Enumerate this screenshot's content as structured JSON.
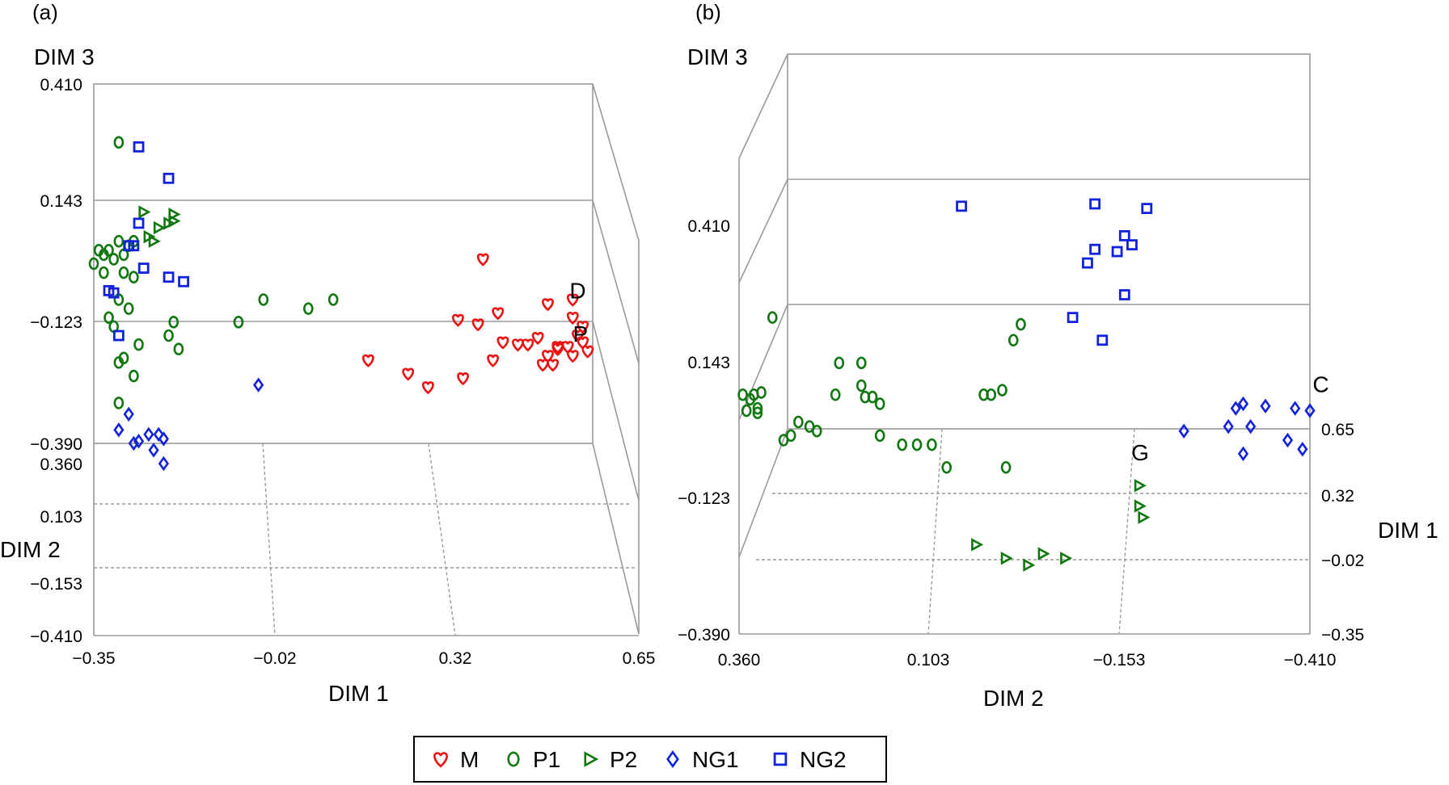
{
  "chart_data": [
    {
      "panel": "(a)",
      "type": "scatter",
      "xlabel": "DIM 1",
      "ylabel": "DIM 3",
      "zlabel": "DIM 2",
      "x_ticks": [
        "−0.35",
        "−0.02",
        "0.32",
        "0.65"
      ],
      "y_ticks": [
        "0.410",
        "0.143",
        "−0.123",
        "−0.390"
      ],
      "z_ticks": [
        "0.360",
        "0.103",
        "−0.153",
        "−0.410"
      ],
      "xlim": [
        -0.35,
        0.65
      ],
      "annotations": [
        {
          "text": "D",
          "x": 0.61,
          "y": -0.06
        },
        {
          "text": "P",
          "x": 0.62,
          "y": -0.135
        }
      ],
      "series": [
        {
          "name": "M",
          "points": [
            [
              0.43,
              0.02
            ],
            [
              0.56,
              -0.08
            ],
            [
              0.61,
              -0.07
            ],
            [
              0.46,
              -0.1
            ],
            [
              0.38,
              -0.115
            ],
            [
              0.42,
              -0.125
            ],
            [
              0.61,
              -0.11
            ],
            [
              0.54,
              -0.155
            ],
            [
              0.47,
              -0.165
            ],
            [
              0.5,
              -0.17
            ],
            [
              0.52,
              -0.17
            ],
            [
              0.58,
              -0.175
            ],
            [
              0.6,
              -0.175
            ],
            [
              0.63,
              -0.165
            ],
            [
              0.64,
              -0.185
            ],
            [
              0.56,
              -0.195
            ],
            [
              0.61,
              -0.195
            ],
            [
              0.55,
              -0.215
            ],
            [
              0.57,
              -0.215
            ],
            [
              0.45,
              -0.205
            ],
            [
              0.2,
              -0.205
            ],
            [
              0.39,
              -0.245
            ],
            [
              0.28,
              -0.235
            ],
            [
              0.32,
              -0.265
            ],
            [
              0.58,
              -0.18
            ],
            [
              0.62,
              -0.15
            ],
            [
              0.63,
              -0.13
            ]
          ]
        },
        {
          "name": "P1",
          "points": [
            [
              -0.3,
              0.28
            ],
            [
              -0.34,
              0.04
            ],
            [
              -0.33,
              0.03
            ],
            [
              -0.32,
              0.04
            ],
            [
              -0.31,
              0.02
            ],
            [
              -0.3,
              0.06
            ],
            [
              -0.29,
              0.03
            ],
            [
              -0.28,
              0.05
            ],
            [
              -0.27,
              0.06
            ],
            [
              -0.35,
              0.01
            ],
            [
              -0.33,
              -0.01
            ],
            [
              -0.29,
              -0.01
            ],
            [
              -0.27,
              -0.02
            ],
            [
              -0.3,
              -0.07
            ],
            [
              -0.28,
              -0.09
            ],
            [
              -0.32,
              -0.11
            ],
            [
              -0.31,
              -0.13
            ],
            [
              -0.26,
              -0.17
            ],
            [
              -0.29,
              -0.2
            ],
            [
              -0.3,
              -0.21
            ],
            [
              -0.27,
              -0.24
            ],
            [
              -0.3,
              -0.3
            ],
            [
              -0.18,
              -0.18
            ],
            [
              -0.2,
              -0.15
            ],
            [
              -0.19,
              -0.12
            ],
            [
              -0.06,
              -0.12
            ],
            [
              -0.01,
              -0.07
            ],
            [
              0.08,
              -0.09
            ],
            [
              0.13,
              -0.07
            ]
          ]
        },
        {
          "name": "P2",
          "points": [
            [
              -0.25,
              0.125
            ],
            [
              -0.19,
              0.12
            ],
            [
              -0.19,
              0.105
            ],
            [
              -0.2,
              0.1
            ],
            [
              -0.22,
              0.09
            ],
            [
              -0.24,
              0.07
            ],
            [
              -0.23,
              0.06
            ]
          ]
        },
        {
          "name": "NG1",
          "points": [
            [
              -0.02,
              -0.26
            ],
            [
              -0.28,
              -0.325
            ],
            [
              -0.3,
              -0.36
            ],
            [
              -0.24,
              -0.37
            ],
            [
              -0.26,
              -0.385
            ],
            [
              -0.27,
              -0.39
            ],
            [
              -0.22,
              -0.37
            ],
            [
              -0.23,
              -0.405
            ],
            [
              -0.21,
              -0.435
            ],
            [
              -0.21,
              -0.38
            ]
          ]
        },
        {
          "name": "NG2",
          "points": [
            [
              -0.26,
              0.27
            ],
            [
              -0.2,
              0.2
            ],
            [
              -0.26,
              0.1
            ],
            [
              -0.28,
              0.05
            ],
            [
              -0.27,
              0.05
            ],
            [
              -0.25,
              0.0
            ],
            [
              -0.2,
              -0.02
            ],
            [
              -0.17,
              -0.03
            ],
            [
              -0.32,
              -0.05
            ],
            [
              -0.31,
              -0.055
            ],
            [
              -0.3,
              -0.15
            ]
          ]
        }
      ]
    },
    {
      "panel": "(b)",
      "type": "scatter",
      "xlabel": "DIM 2",
      "ylabel": "DIM 3",
      "zlabel": "DIM 1",
      "x_ticks": [
        "0.360",
        "0.103",
        "−0.153",
        "−0.410"
      ],
      "y_ticks": [
        "0.410",
        "0.143",
        "−0.123",
        "−0.390"
      ],
      "z_ticks": [
        "0.65",
        "0.32",
        "−0.02",
        "−0.35"
      ],
      "xlim": [
        0.36,
        -0.41
      ],
      "annotations": [
        {
          "text": "C",
          "x": -0.405,
          "y": 0.0
        },
        {
          "text": "G",
          "x": -0.18,
          "y": -0.15
        }
      ],
      "series": [
        {
          "name": "P1",
          "points": [
            [
              0.315,
              0.2
            ],
            [
              0.225,
              0.1
            ],
            [
              0.195,
              0.05
            ],
            [
              0.23,
              0.03
            ],
            [
              0.33,
              0.035
            ],
            [
              0.345,
              0.02
            ],
            [
              0.335,
              0.0
            ],
            [
              0.335,
              -0.01
            ],
            [
              0.35,
              -0.005
            ],
            [
              0.34,
              0.03
            ],
            [
              0.355,
              0.03
            ],
            [
              0.28,
              -0.03
            ],
            [
              0.265,
              -0.04
            ],
            [
              0.255,
              -0.05
            ],
            [
              0.29,
              -0.06
            ],
            [
              0.3,
              -0.07
            ],
            [
              0.17,
              -0.06
            ],
            [
              0.18,
              0.025
            ],
            [
              0.19,
              0.025
            ],
            [
              0.195,
              0.1
            ],
            [
              0.17,
              0.01
            ],
            [
              0.14,
              -0.08
            ],
            [
              0.12,
              -0.08
            ],
            [
              0.1,
              -0.08
            ],
            [
              0.08,
              -0.13
            ],
            [
              0.0,
              -0.13
            ],
            [
              0.02,
              0.03
            ],
            [
              0.03,
              0.03
            ],
            [
              0.005,
              0.04
            ],
            [
              -0.01,
              0.15
            ],
            [
              -0.02,
              0.185
            ]
          ]
        },
        {
          "name": "P2",
          "points": [
            [
              -0.18,
              -0.17
            ],
            [
              -0.18,
              -0.215
            ],
            [
              -0.185,
              -0.24
            ],
            [
              0.04,
              -0.3
            ],
            [
              0.0,
              -0.33
            ],
            [
              -0.03,
              -0.345
            ],
            [
              -0.05,
              -0.32
            ],
            [
              -0.08,
              -0.33
            ]
          ]
        },
        {
          "name": "NG1",
          "points": [
            [
              -0.35,
              0.005
            ],
            [
              -0.32,
              0.01
            ],
            [
              -0.31,
              0.0
            ],
            [
              -0.39,
              0.0
            ],
            [
              -0.41,
              -0.005
            ],
            [
              -0.24,
              -0.05
            ],
            [
              -0.33,
              -0.04
            ],
            [
              -0.3,
              -0.04
            ],
            [
              -0.38,
              -0.07
            ],
            [
              -0.32,
              -0.1
            ],
            [
              -0.4,
              -0.09
            ]
          ]
        },
        {
          "name": "NG2",
          "points": [
            [
              0.06,
              0.445
            ],
            [
              -0.12,
              0.45
            ],
            [
              -0.19,
              0.44
            ],
            [
              -0.16,
              0.38
            ],
            [
              -0.17,
              0.36
            ],
            [
              -0.12,
              0.35
            ],
            [
              -0.15,
              0.345
            ],
            [
              -0.11,
              0.32
            ],
            [
              -0.16,
              0.25
            ],
            [
              -0.09,
              0.2
            ],
            [
              -0.13,
              0.15
            ]
          ]
        }
      ]
    }
  ],
  "legend": {
    "items": [
      {
        "label": "M",
        "color": "#ee1111",
        "marker": "heart-marker"
      },
      {
        "label": "P1",
        "color": "#117711",
        "marker": "circle-marker"
      },
      {
        "label": "P2",
        "color": "#117711",
        "marker": "triangle-marker"
      },
      {
        "label": "NG1",
        "color": "#1122dd",
        "marker": "diamond-marker"
      },
      {
        "label": "NG2",
        "color": "#1122dd",
        "marker": "square-marker"
      }
    ]
  },
  "colors": {
    "M": "#ee1111",
    "P1": "#117711",
    "P2": "#117711",
    "NG1": "#1122dd",
    "NG2": "#1122dd"
  }
}
